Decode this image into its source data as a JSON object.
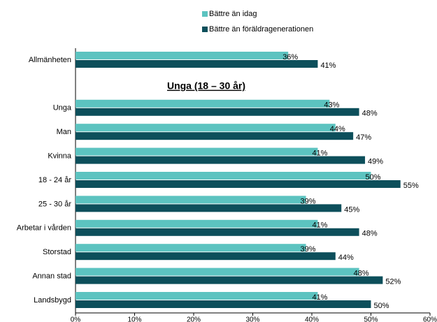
{
  "chart_data": {
    "type": "barh",
    "annotation": "Unga (18 – 30 år)",
    "categories": [
      "Allmänheten",
      null,
      "Unga",
      "Man",
      "Kvinna",
      "18 - 24 år",
      "25 - 30 år",
      "Arbetar i vården",
      "Storstad",
      "Annan stad",
      "Landsbygd"
    ],
    "series": [
      {
        "name": "Bättre än idag",
        "color": "#5cc3c0",
        "values": [
          36,
          null,
          43,
          44,
          41,
          50,
          39,
          41,
          39,
          48,
          41
        ],
        "value_labels": [
          "36%",
          null,
          "43%",
          "44%",
          "41%",
          "50%",
          "39%",
          "41%",
          "39%",
          "48%",
          "41%"
        ]
      },
      {
        "name": "Bättre än föräldragenerationen",
        "color": "#0d4f5b",
        "values": [
          41,
          null,
          48,
          47,
          49,
          55,
          45,
          48,
          44,
          52,
          50
        ],
        "value_labels": [
          "41%",
          null,
          "48%",
          "47%",
          "49%",
          "55%",
          "45%",
          "48%",
          "44%",
          "52%",
          "50%"
        ]
      }
    ],
    "xlim": [
      0,
      60
    ],
    "xticks": [
      {
        "value": 0,
        "label": "0%"
      },
      {
        "value": 10,
        "label": "10%"
      },
      {
        "value": 20,
        "label": "20%"
      },
      {
        "value": 30,
        "label": "30%"
      },
      {
        "value": 40,
        "label": "40%"
      },
      {
        "value": 50,
        "label": "50%"
      },
      {
        "value": 60,
        "label": "60%"
      }
    ],
    "legend": "top"
  }
}
